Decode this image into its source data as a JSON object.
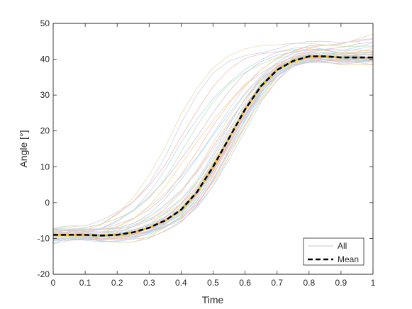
{
  "chart_data": {
    "type": "line",
    "xlabel": "Time",
    "ylabel": "Angle [°]",
    "xlim": [
      0,
      1
    ],
    "ylim": [
      -20,
      50
    ],
    "xticks": [
      0,
      0.1,
      0.2,
      0.3,
      0.4,
      0.5,
      0.6,
      0.7,
      0.8,
      0.9,
      1
    ],
    "xtick_labels": [
      "0",
      "0.1",
      "0.2",
      "0.3",
      "0.4",
      "0.5",
      "0.6",
      "0.7",
      "0.8",
      "0.9",
      "1"
    ],
    "yticks": [
      -20,
      -10,
      0,
      10,
      20,
      30,
      40,
      50
    ],
    "ytick_labels": [
      "-20",
      "-10",
      "0",
      "10",
      "20",
      "30",
      "40",
      "50"
    ],
    "grid": false,
    "legend_position": "bottom-right",
    "x": [
      0,
      0.05,
      0.1,
      0.15,
      0.2,
      0.25,
      0.3,
      0.35,
      0.4,
      0.45,
      0.5,
      0.55,
      0.6,
      0.65,
      0.7,
      0.75,
      0.8,
      0.85,
      0.9,
      0.95,
      1
    ],
    "series": [
      {
        "name": "All",
        "style": "thin-multicolor",
        "n_traces": 40,
        "color": "#b4d7ec",
        "envelope_low": [
          -11.5,
          -10.5,
          -10.5,
          -11,
          -11,
          -11,
          -10,
          -8,
          -6,
          -2,
          4,
          12,
          20,
          28,
          34,
          38,
          39,
          39,
          38.5,
          38.5,
          38.5
        ],
        "envelope_high": [
          -7,
          -6.5,
          -6.5,
          -5,
          -2,
          2,
          8,
          16,
          26,
          34,
          40,
          43,
          44,
          44,
          44,
          44.5,
          45,
          45,
          45,
          46,
          47
        ]
      },
      {
        "name": "Mean",
        "style": "dashed",
        "color": "#000000",
        "values": [
          -9,
          -9,
          -9,
          -9.2,
          -9,
          -8.3,
          -7,
          -5,
          -2,
          3,
          10,
          18,
          26,
          32.5,
          37,
          39.5,
          40.8,
          40.8,
          40.5,
          40.5,
          40.5
        ]
      }
    ]
  }
}
